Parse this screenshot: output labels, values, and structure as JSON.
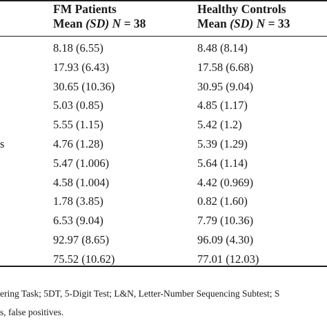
{
  "header": {
    "fm_title": "FM Patients",
    "hc_title": "Healthy Controls",
    "mean": "Mean",
    "sd": "(SD)",
    "n_letter": "N",
    "fm_n": "= 38",
    "hc_n": "= 33"
  },
  "rows": [
    {
      "label": "",
      "fm": "8.18 (6.55)",
      "hc": "8.48 (8.14)"
    },
    {
      "label": "",
      "fm": "17.93 (6.43)",
      "hc": "17.58 (6.68)"
    },
    {
      "label": "",
      "fm": "30.65 (10.36)",
      "hc": "30.95 (9.04)"
    },
    {
      "label": "",
      "fm": "5.03 (0.85)",
      "hc": "4.85 (1.17)"
    },
    {
      "label": "",
      "fm": "5.55 (1.15)",
      "hc": "5.42 (1.2)"
    },
    {
      "label": "s",
      "fm": "4.76 (1.28)",
      "hc": "5.39 (1.29)"
    },
    {
      "label": "",
      "fm": "5.47 (1.006)",
      "hc": "5.64 (1.14)"
    },
    {
      "label": "",
      "fm": "4.58 (1.004)",
      "hc": "4.42 (0.969)"
    },
    {
      "label": "",
      "fm": "1.78 (3.85)",
      "hc": "0.82 (1.60)"
    },
    {
      "label": "",
      "fm": "6.53 (9.04)",
      "hc": "7.79 (10.36)"
    },
    {
      "label": "",
      "fm": "92.97 (8.65)",
      "hc": "96.09 (4.30)"
    },
    {
      "label": "",
      "fm": "75.52 (10.62)",
      "hc": "77.01 (12.03)"
    }
  ],
  "footnote": {
    "line1": "ering Task; 5DT, 5-Digit Test; L&N, Letter-Number Sequencing Subtest; S",
    "line2": "s, false positives."
  }
}
